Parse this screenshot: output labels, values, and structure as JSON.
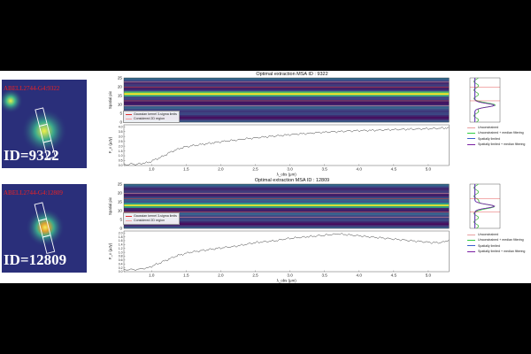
{
  "colors": {
    "unconstrained": "#e8a0a0",
    "unconstrained_median": "#2ecc40",
    "spatially_limited": "#3a5fcd",
    "spatially_limited_median": "#7a1fa2",
    "kernel_limits": "#e03030",
    "region_2d": "#f0a0a0",
    "stamp_bg": "#2a2f7a",
    "label_red": "#e22222"
  },
  "stamps": [
    {
      "label": "ABELL2744-G4:9322",
      "id_text": "ID=9322"
    },
    {
      "label": "ABELL2744-G4:12809",
      "id_text": "ID=12809"
    }
  ],
  "chart_data": [
    {
      "type": "line",
      "title": "Optimal extraction MSA ID : 9322",
      "xlabel": "λ_obs (μm)",
      "ylabel_1d": "F_ν (μJy)",
      "ylabel_2d": "Spatial pix",
      "xlim": [
        0.6,
        5.5
      ],
      "x_ticks": [
        "1.0",
        "1.5",
        "2.0",
        "2.5",
        "3.0",
        "3.5",
        "4.0",
        "4.5",
        "5.0"
      ],
      "spatial_ticks": [
        "0",
        "5",
        "10",
        "15",
        "20",
        "25"
      ],
      "flux_ticks": [
        "0.0",
        "0.5",
        "1.0",
        "1.5",
        "2.0",
        "2.5",
        "3.0",
        "3.5",
        "4.0"
      ],
      "ylim_1d": [
        0,
        4.2
      ],
      "trace_row": 9,
      "inset_legend": [
        "Gaussian kernel 3-sigma limits",
        "Considered 2D region"
      ],
      "legend": [
        "Unconstrained",
        "Unconstrained + median filtering",
        "Spatially limited",
        "Spatially limited + median filtering"
      ],
      "series": [
        {
          "name": "Spectrum",
          "x": [
            0.6,
            0.8,
            0.95,
            1.05,
            1.15,
            1.25,
            1.35,
            1.45,
            1.55,
            1.65,
            1.75,
            1.85,
            1.95,
            2.05,
            2.2,
            2.35,
            2.5,
            2.65,
            2.8,
            2.95,
            3.1,
            3.25,
            3.4,
            3.55,
            3.7,
            3.85,
            4.0,
            4.15,
            4.3,
            4.45,
            4.6,
            4.75,
            4.9,
            5.05,
            5.2,
            5.3
          ],
          "values": [
            0.1,
            0.15,
            0.3,
            0.6,
            0.9,
            1.3,
            1.6,
            1.85,
            2.0,
            2.1,
            2.2,
            2.3,
            2.4,
            2.5,
            2.6,
            2.75,
            2.85,
            2.95,
            3.05,
            3.15,
            3.25,
            3.3,
            3.4,
            3.45,
            3.5,
            3.55,
            3.6,
            3.62,
            3.65,
            3.7,
            3.72,
            3.75,
            3.78,
            3.8,
            3.85,
            3.9
          ]
        }
      ]
    },
    {
      "type": "line",
      "title": "Optimal extraction MSA ID : 12809",
      "xlabel": "λ_obs (μm)",
      "ylabel_1d": "F_ν (μJy)",
      "ylabel_2d": "Spatial pix",
      "xlim": [
        0.6,
        5.5
      ],
      "x_ticks": [
        "1.0",
        "1.5",
        "2.0",
        "2.5",
        "3.0",
        "3.5",
        "4.0",
        "4.5",
        "5.0"
      ],
      "spatial_ticks": [
        "0",
        "5",
        "10",
        "15",
        "20",
        "25"
      ],
      "flux_ticks": [
        "0.0",
        "0.2",
        "0.4",
        "0.6",
        "0.8",
        "1.0",
        "1.2",
        "1.4",
        "1.6",
        "1.8",
        "2.0"
      ],
      "ylim_1d": [
        0,
        2.1
      ],
      "trace_row": 12,
      "inset_legend": [
        "Gaussian kernel 3-sigma limits",
        "Considered 2D region"
      ],
      "legend": [
        "Unconstrained",
        "Unconstrained + median filtering",
        "Spatially limited",
        "Spatially limited + median filtering"
      ],
      "series": [
        {
          "name": "Spectrum",
          "x": [
            0.6,
            0.8,
            0.95,
            1.05,
            1.15,
            1.25,
            1.35,
            1.45,
            1.55,
            1.65,
            1.75,
            1.85,
            1.95,
            2.05,
            2.2,
            2.35,
            2.5,
            2.65,
            2.8,
            2.95,
            3.1,
            3.25,
            3.4,
            3.55,
            3.7,
            3.85,
            4.0,
            4.15,
            4.3,
            4.45,
            4.6,
            4.75,
            4.9,
            5.05,
            5.2,
            5.3
          ],
          "values": [
            0.1,
            0.12,
            0.2,
            0.35,
            0.5,
            0.65,
            0.8,
            0.9,
            1.0,
            1.05,
            1.1,
            1.15,
            1.2,
            1.25,
            1.3,
            1.4,
            1.5,
            1.55,
            1.6,
            1.7,
            1.75,
            1.8,
            1.85,
            1.9,
            1.95,
            1.9,
            1.85,
            1.8,
            1.75,
            1.7,
            1.65,
            1.6,
            1.55,
            1.5,
            1.5,
            1.65
          ]
        }
      ]
    }
  ]
}
